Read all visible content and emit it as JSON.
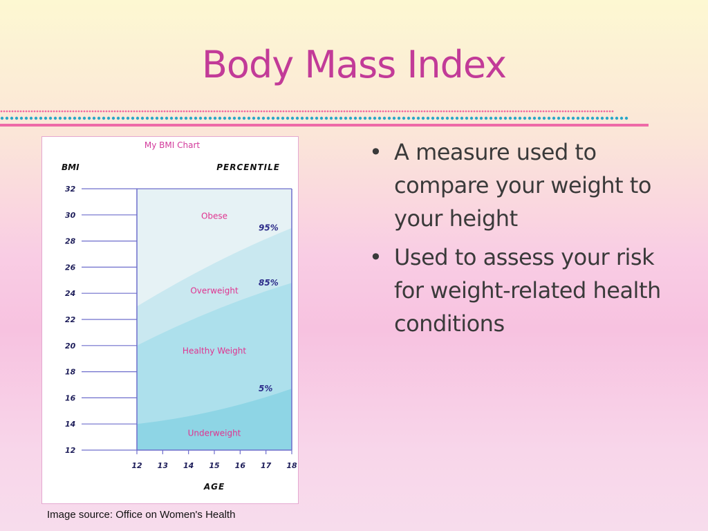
{
  "slide": {
    "title": "Body Mass Index",
    "bullets": [
      "A measure used to compare your weight to your height",
      "Used to assess your risk for weight-related health conditions"
    ],
    "bullet_symbol": "•",
    "image_source": "Image source: Office on Women's Health"
  },
  "colors": {
    "title": "#c23b98",
    "rule_pink": "#ee6aa7",
    "rule_dots_pink": "#f06aa0",
    "rule_dots_teal": "#2aa7c8"
  },
  "chart_data": {
    "type": "area",
    "title": "My BMI Chart",
    "ylabel": "BMI",
    "xlabel": "AGE",
    "right_label": "PERCENTILE",
    "x_ticks": [
      12,
      13,
      14,
      15,
      16,
      17,
      18
    ],
    "y_ticks": [
      12,
      14,
      16,
      18,
      20,
      22,
      24,
      26,
      28,
      30,
      32
    ],
    "xlim": [
      12,
      18
    ],
    "ylim": [
      12,
      32
    ],
    "grid": false,
    "percentile_curves": [
      {
        "name": "95%",
        "x": [
          12,
          15,
          18
        ],
        "y": [
          23,
          26.3,
          29
        ]
      },
      {
        "name": "85%",
        "x": [
          12,
          15,
          18
        ],
        "y": [
          20,
          22.7,
          24.8
        ]
      },
      {
        "name": "5%",
        "x": [
          12,
          15,
          18
        ],
        "y": [
          14,
          15,
          16.7
        ]
      }
    ],
    "regions": [
      {
        "label": "Obese",
        "label_pos": [
          15,
          29.9
        ],
        "color": "#e6f2f5"
      },
      {
        "label": "Overweight",
        "label_pos": [
          15,
          24.2
        ],
        "color": "#c9e8f0"
      },
      {
        "label": "Healthy Weight",
        "label_pos": [
          15,
          19.6
        ],
        "color": "#ade0ec"
      },
      {
        "label": "Underweight",
        "label_pos": [
          15,
          13.3
        ],
        "color": "#8ed5e5"
      }
    ],
    "colors": {
      "title": "#d23a9b",
      "region_label": "#e0338f",
      "percentile_label": "#2d2d8a",
      "axis": "#6d6dcc",
      "tick_text": "#1e1e5a",
      "heading": "#111111"
    }
  }
}
